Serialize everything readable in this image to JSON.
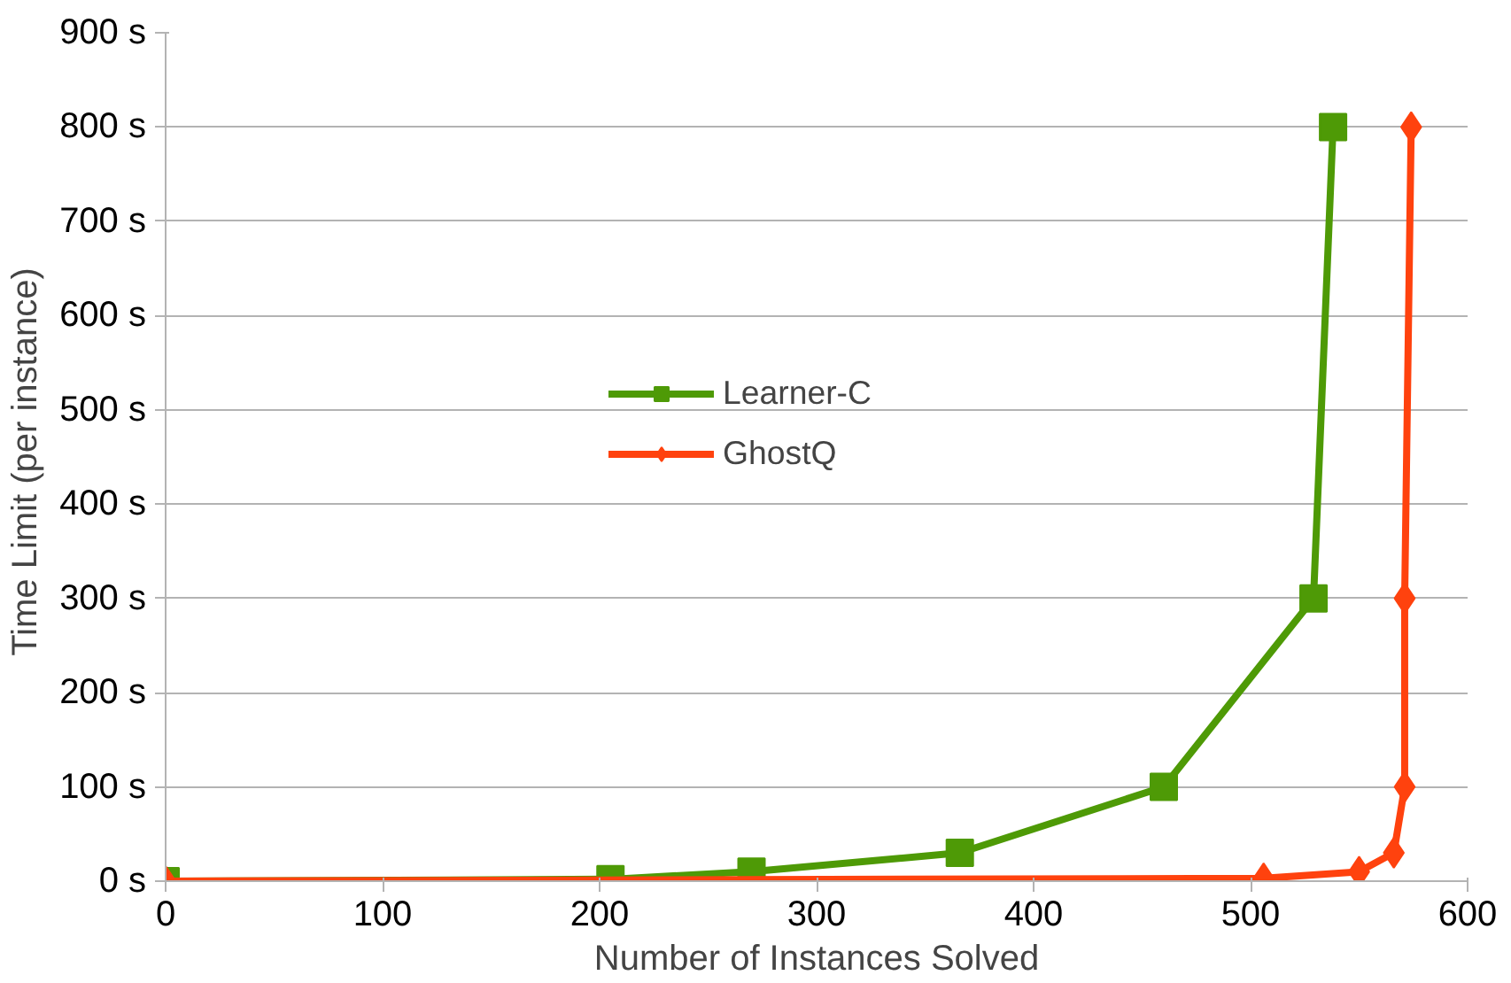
{
  "chart_data": {
    "type": "line",
    "xlabel": "Number of Instances Solved",
    "ylabel": "Time Limit  (per instance)",
    "xlim": [
      0,
      600
    ],
    "xticks": [
      0,
      100,
      200,
      300,
      400,
      500,
      600
    ],
    "ylim": [
      0,
      900
    ],
    "yticks": [
      {
        "value": 0,
        "label": "0 s"
      },
      {
        "value": 100,
        "label": "100 s"
      },
      {
        "value": 200,
        "label": "200 s"
      },
      {
        "value": 300,
        "label": "300 s"
      },
      {
        "value": 400,
        "label": "400 s"
      },
      {
        "value": 500,
        "label": "500 s"
      },
      {
        "value": 600,
        "label": "600 s"
      },
      {
        "value": 700,
        "label": "700 s"
      },
      {
        "value": 800,
        "label": "800 s"
      },
      {
        "value": 900,
        "label": "900 s"
      }
    ],
    "grid": "y",
    "legend": "center",
    "line_style": "solid",
    "series": [
      {
        "name": "Learner-C",
        "color": "#4e9a06",
        "marker": "square",
        "x": [
          0,
          205,
          270,
          366,
          460,
          529,
          538
        ],
        "values": [
          0,
          2,
          10,
          30,
          100,
          300,
          800
        ]
      },
      {
        "name": "GhostQ",
        "color": "#ff420e",
        "marker": "diamond",
        "x": [
          0,
          506,
          550,
          566,
          571,
          571,
          574
        ],
        "values": [
          0,
          3,
          10,
          30,
          100,
          300,
          800
        ]
      }
    ]
  }
}
